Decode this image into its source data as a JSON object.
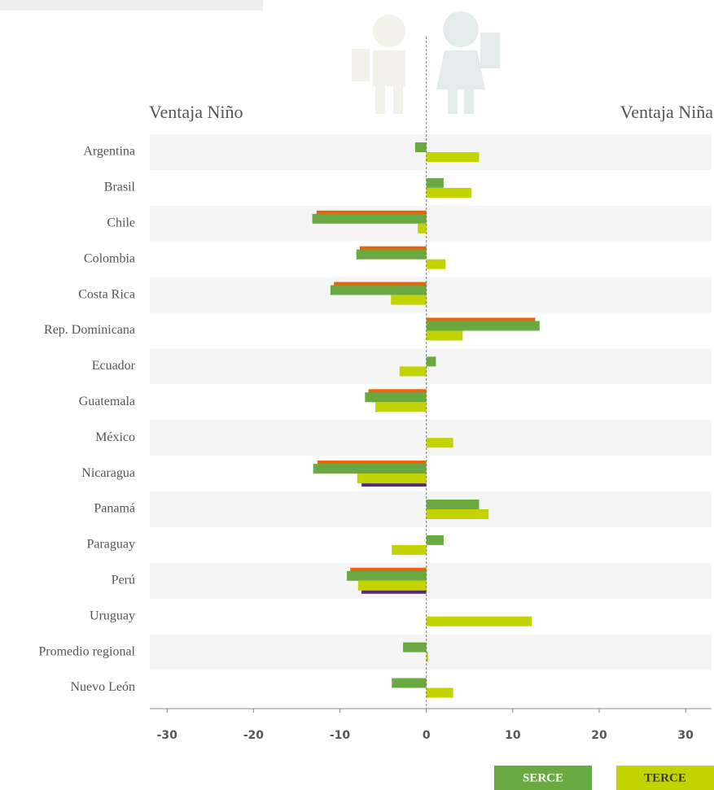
{
  "chart_data": {
    "type": "hbar",
    "left_label": "Ventaja Niño",
    "right_label": "Ventaja Niña",
    "categories": [
      "Argentina",
      "Brasil",
      "Chile",
      "Colombia",
      "Costa Rica",
      "Rep. Dominicana",
      "Ecuador",
      "Guatemala",
      "México",
      "Nicaragua",
      "Panamá",
      "Paraguay",
      "Perú",
      "Uruguay",
      "Promedio regional",
      "Nuevo León"
    ],
    "series": [
      {
        "color": "#e8650e",
        "values": [
          null,
          null,
          -12.7,
          -7.7,
          -10.7,
          12.6,
          null,
          -6.7,
          null,
          -12.6,
          null,
          null,
          -8.8,
          null,
          null,
          null
        ]
      },
      {
        "name": "SERCE",
        "color": "#6aa842",
        "values": [
          -1.3,
          2.0,
          -13.2,
          -8.1,
          -11.1,
          13.1,
          1.1,
          -7.1,
          null,
          -13.1,
          6.1,
          2.0,
          -9.2,
          null,
          -2.7,
          -4.0
        ]
      },
      {
        "name": "TERCE",
        "color": "#c2d300",
        "values": [
          6.1,
          5.2,
          -1.0,
          2.2,
          -4.1,
          4.2,
          -3.1,
          -5.9,
          3.1,
          -8.0,
          7.2,
          -4.0,
          -7.9,
          12.2,
          0.2,
          3.1
        ]
      },
      {
        "color": "#5c2a6e",
        "values": [
          null,
          null,
          null,
          null,
          null,
          null,
          null,
          null,
          null,
          -7.5,
          null,
          null,
          -7.5,
          null,
          null,
          null
        ]
      }
    ],
    "xlim": [
      -32,
      33
    ],
    "xticks": [
      -30,
      -20,
      -10,
      0,
      10,
      20,
      30
    ]
  }
}
